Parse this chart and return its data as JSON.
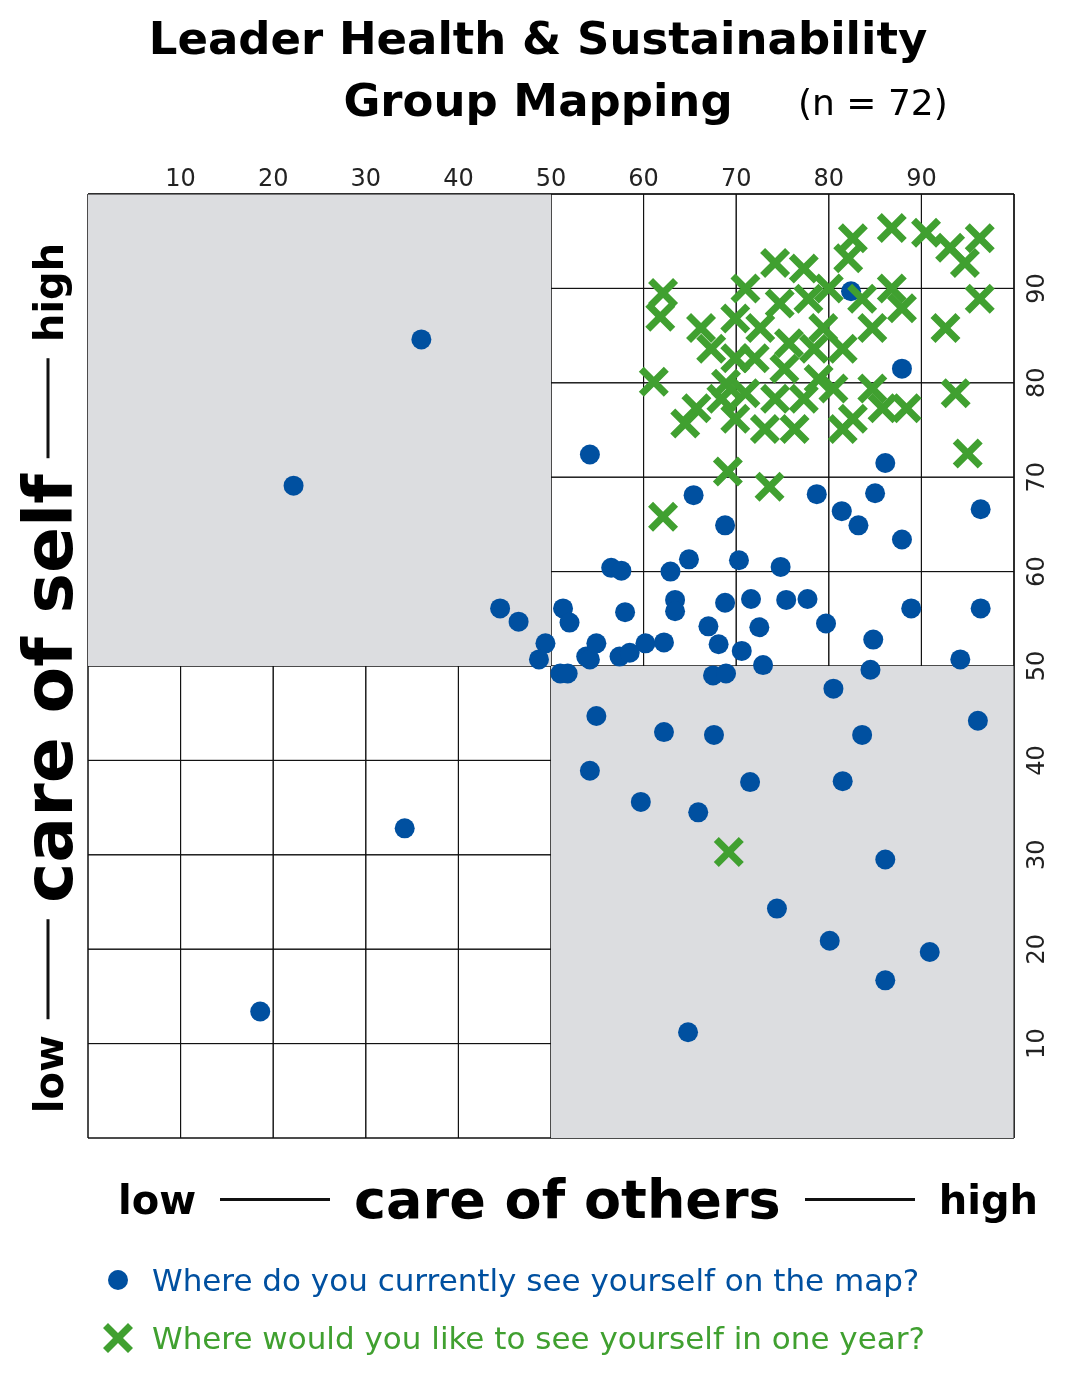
{
  "chart_data": {
    "type": "scatter",
    "title": "Leader Health & Sustainability Group Mapping",
    "subtitle": "(n = 72)",
    "xlabel": "care of others",
    "ylabel": "care of self",
    "annotations": [
      "low",
      "high",
      "low",
      "high"
    ],
    "xlim": [
      0,
      100
    ],
    "ylim": [
      0,
      100
    ],
    "xticks": [
      10,
      20,
      30,
      40,
      50,
      60,
      70,
      80,
      90
    ],
    "yticks": [
      10,
      20,
      30,
      40,
      50,
      60,
      70,
      80,
      90
    ],
    "grid": true,
    "legend": "bottom",
    "series": [
      {
        "name": "Where do you currently see yourself on the map?",
        "color": "#0050a0",
        "marker": "circle",
        "x": [
          36.0,
          22.2,
          34.2,
          18.6,
          54.2,
          44.5,
          46.5,
          49.4,
          48.7,
          51.3,
          52.0,
          51.0,
          51.8,
          53.8,
          54.2,
          54.9,
          54.9,
          54.2,
          56.5,
          57.6,
          58.0,
          57.4,
          58.5,
          60.2,
          62.2,
          62.9,
          63.4,
          63.4,
          64.9,
          65.4,
          68.8,
          67.0,
          68.1,
          67.5,
          68.9,
          68.8,
          70.3,
          70.6,
          71.6,
          72.5,
          72.9,
          74.8,
          75.4,
          77.7,
          78.7,
          79.7,
          80.5,
          81.4,
          83.2,
          82.4,
          86.1,
          85.0,
          87.9,
          87.9,
          84.8,
          84.5,
          88.9,
          96.4,
          96.4,
          94.2,
          96.1,
          62.2,
          67.6,
          83.6,
          59.7,
          65.9,
          71.5,
          81.5,
          86.1,
          74.4,
          80.1,
          90.9,
          86.1,
          64.8
        ],
        "values": [
          84.6,
          69.1,
          32.8,
          13.4,
          72.4,
          56.1,
          54.7,
          52.4,
          50.7,
          56.1,
          54.6,
          49.2,
          49.2,
          51.0,
          50.7,
          52.4,
          44.7,
          38.9,
          60.4,
          60.1,
          55.7,
          51.0,
          51.4,
          52.4,
          52.5,
          60.0,
          57.0,
          55.8,
          61.3,
          68.1,
          64.9,
          54.2,
          52.3,
          49.0,
          49.2,
          56.7,
          61.2,
          51.6,
          57.1,
          54.1,
          50.1,
          60.5,
          57.0,
          57.1,
          68.2,
          54.5,
          47.6,
          66.4,
          64.9,
          89.7,
          71.5,
          68.3,
          81.5,
          63.4,
          52.8,
          49.6,
          56.1,
          66.6,
          56.1,
          50.7,
          44.2,
          43.0,
          42.7,
          42.7,
          35.6,
          34.5,
          37.7,
          37.8,
          29.5,
          24.3,
          20.9,
          19.7,
          16.7,
          11.2
        ]
      },
      {
        "name": "Where would you like to see yourself in one year?",
        "color": "#40a030",
        "marker": "cross",
        "x": [
          62.1,
          61.8,
          61.1,
          62.1,
          69.1,
          73.6,
          69.2,
          66.2,
          67.3,
          64.5,
          68.4,
          65.7,
          71.0,
          71.0,
          72.6,
          74.2,
          74.7,
          77.3,
          77.8,
          78.4,
          69.9,
          72.0,
          75.2,
          76.3,
          73.1,
          69.9,
          79.4,
          80.5,
          82.6,
          81.5,
          84.7,
          84.7,
          82.6,
          86.8,
          90.5,
          86.8,
          87.9,
          88.4,
          85.8,
          83.6,
          93.1,
          94.7,
          96.3,
          96.3,
          92.6,
          93.7,
          95.0,
          82.1,
          80.0,
          75.7,
          77.3,
          78.9,
          68.9,
          69.9,
          74.2,
          81.5
        ],
        "values": [
          89.5,
          87.0,
          80.1,
          65.8,
          70.6,
          69.0,
          30.3,
          85.8,
          83.6,
          75.7,
          78.3,
          77.3,
          78.9,
          90.0,
          85.8,
          92.7,
          88.4,
          92.1,
          88.9,
          83.6,
          82.6,
          82.6,
          81.5,
          75.1,
          75.1,
          76.2,
          85.8,
          79.4,
          76.2,
          83.6,
          85.8,
          79.4,
          95.3,
          96.4,
          95.9,
          90.0,
          87.9,
          77.3,
          77.3,
          88.9,
          94.3,
          92.7,
          95.3,
          88.9,
          85.8,
          78.9,
          72.5,
          93.2,
          90.0,
          84.2,
          78.3,
          80.4,
          79.9,
          86.8,
          78.3,
          75.1
        ]
      }
    ]
  }
}
